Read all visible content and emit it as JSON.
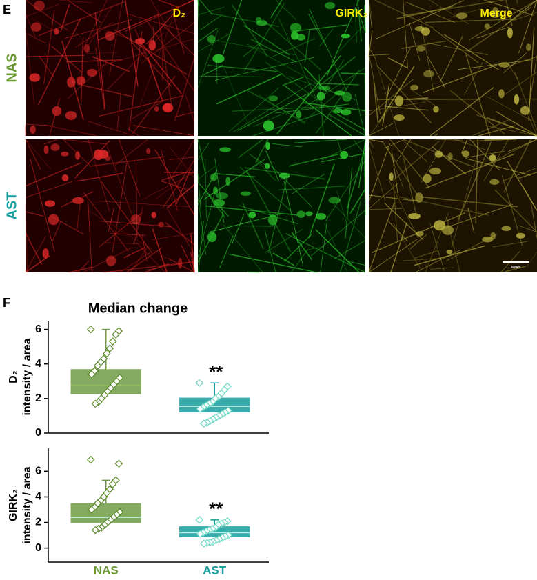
{
  "panel_e": {
    "label": "E",
    "columns": [
      "D₂",
      "GIRK₂",
      "Merge"
    ],
    "rows": [
      "NAS",
      "AST"
    ],
    "scale_bar": "100 µm"
  },
  "panel_f": {
    "label": "F"
  },
  "chart_data": [
    {
      "type": "box",
      "title": "Median change",
      "ylabel": [
        "D₂",
        "intensity / area"
      ],
      "ylim": [
        0,
        6.5
      ],
      "yticks": [
        0,
        2,
        4,
        6
      ],
      "boxes": [
        {
          "color": "#6f9a45",
          "point_color": "#5a8a2a",
          "q1": 2.25,
          "median": 2.75,
          "q3": 3.7,
          "whisker_high": 6.0,
          "points": [
            6.0,
            5.9,
            5.7,
            5.3,
            4.9,
            4.6,
            4.3,
            4.1,
            3.9,
            3.6,
            3.4,
            3.2,
            3.0,
            2.8,
            2.6,
            2.4,
            2.2,
            2.0,
            1.8,
            1.7
          ]
        },
        {
          "color": "#169c9c",
          "point_color": "#6fd8c4",
          "q1": 1.2,
          "median": 1.55,
          "q3": 2.05,
          "whisker_high": 2.9,
          "annotation": "**",
          "points": [
            2.9,
            2.7,
            2.5,
            2.3,
            2.1,
            2.0,
            1.8,
            1.7,
            1.6,
            1.5,
            1.4,
            1.3,
            1.2,
            1.1,
            1.0,
            0.9,
            0.8,
            0.7,
            0.6,
            0.55
          ]
        }
      ]
    },
    {
      "type": "box",
      "ylabel": [
        "GIRK₂",
        "intensity / area"
      ],
      "ylim": [
        -1.1,
        7.8
      ],
      "yticks": [
        0,
        2,
        4,
        6
      ],
      "categories": [
        "NAS",
        "AST"
      ],
      "category_colors": [
        "#6a9a30",
        "#16a0a0"
      ],
      "boxes": [
        {
          "color": "#6f9a45",
          "point_color": "#5a8a2a",
          "q1": 1.95,
          "median": 2.4,
          "q3": 3.5,
          "whisker_high": 5.3,
          "points": [
            6.9,
            6.6,
            5.3,
            5.0,
            4.6,
            4.3,
            4.0,
            3.7,
            3.5,
            3.2,
            3.0,
            2.8,
            2.6,
            2.4,
            2.2,
            2.0,
            1.8,
            1.6,
            1.5,
            1.4
          ]
        },
        {
          "color": "#169c9c",
          "point_color": "#6fd8c4",
          "q1": 0.85,
          "median": 1.2,
          "q3": 1.7,
          "whisker_high": 2.2,
          "annotation": "**",
          "points": [
            2.2,
            2.1,
            2.0,
            1.9,
            1.8,
            1.6,
            1.5,
            1.4,
            1.3,
            1.2,
            1.1,
            1.0,
            0.9,
            0.8,
            0.7,
            0.6,
            0.5,
            0.45,
            0.4,
            0.35
          ]
        }
      ]
    }
  ]
}
